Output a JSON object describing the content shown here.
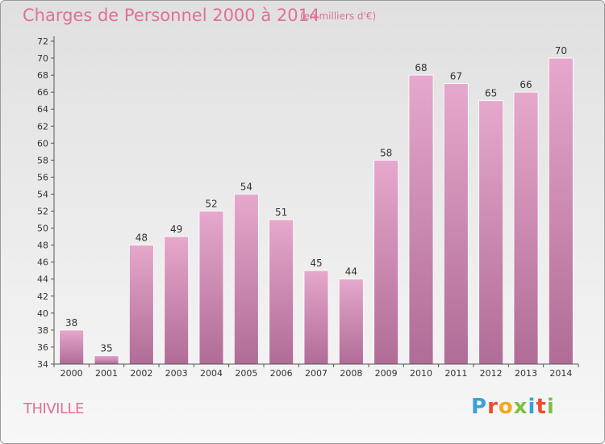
{
  "header": {
    "title": "Charges de Personnel 2000 à 2014",
    "unit": "(en milliers d'€)"
  },
  "footer": {
    "place": "THIVILLE",
    "logo_text": "Proxiti"
  },
  "colors": {
    "title": "#e0709a",
    "bar_top": "#e6a8cc",
    "bar_bottom": "#b06c96",
    "logo": [
      "#3aa0d8",
      "#e94e2d",
      "#f2a81d",
      "#7cc142",
      "#3aa0d8",
      "#e94e2d",
      "#7cc142"
    ]
  },
  "chart_data": {
    "type": "bar",
    "title": "Charges de Personnel 2000 à 2014",
    "subtitle": "(en milliers d'€)",
    "categories": [
      "2000",
      "2001",
      "2002",
      "2003",
      "2004",
      "2005",
      "2006",
      "2007",
      "2008",
      "2009",
      "2010",
      "2011",
      "2012",
      "2013",
      "2014"
    ],
    "values": [
      38,
      35,
      48,
      49,
      52,
      54,
      51,
      45,
      44,
      58,
      68,
      67,
      65,
      66,
      70
    ],
    "ylim": [
      34,
      72
    ],
    "ytick_step": 2,
    "grid": false,
    "data_labels": true
  }
}
